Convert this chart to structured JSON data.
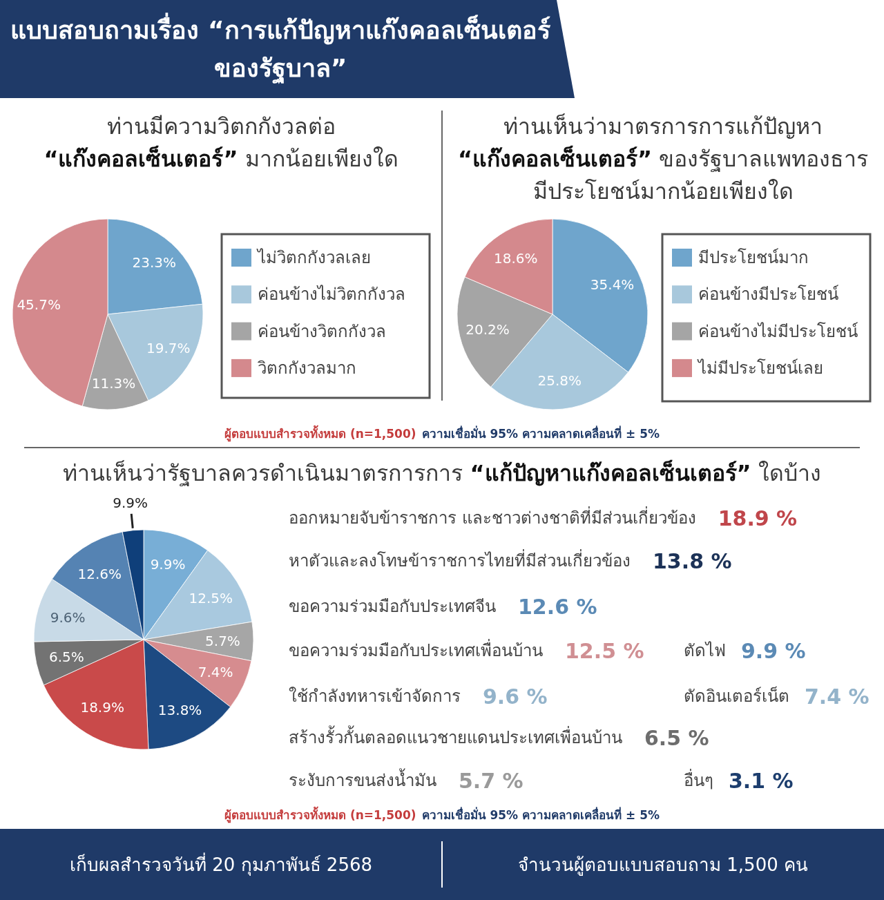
{
  "chart_data": [
    {
      "type": "other",
      "title": "แบบสอบถามเรื่อง “การแก้ปัญหาแก๊งคอลเซ็นเตอร์ ของรัฐบาล”"
    },
    {
      "type": "pie",
      "title": "ท่านมีความวิตกกังวลต่อ “แก๊งคอลเซ็นเตอร์” มากน้อยเพียงใด",
      "categories": [
        "ไม่วิตกกังวลเลย",
        "ค่อนข้างไม่วิตกกังวล",
        "ค่อนข้างวิตกกังวล",
        "วิตกกังวลมาก"
      ],
      "values": [
        23.3,
        19.7,
        11.3,
        45.7
      ],
      "colors": [
        "#6fa5cc",
        "#a8c8dc",
        "#a5a5a5",
        "#d4898d"
      ],
      "value_labels": [
        "23.3%",
        "19.7%",
        "11.3%",
        "45.7%"
      ],
      "legend": "right"
    },
    {
      "type": "pie",
      "title": "ท่านเห็นว่ามาตรการการแก้ปัญหา “แก๊งคอลเซ็นเตอร์” ของรัฐบาลแพทองธาร มีประโยชน์มากน้อยเพียงใด",
      "categories": [
        "มีประโยชน์มาก",
        "ค่อนข้างมีประโยชน์",
        "ค่อนข้างไม่มีประโยชน์",
        "ไม่มีประโยชน์เลย"
      ],
      "values": [
        35.4,
        25.8,
        20.2,
        18.6
      ],
      "colors": [
        "#6fa5cc",
        "#a8c8dc",
        "#a5a5a5",
        "#d4898d"
      ],
      "value_labels": [
        "35.4%",
        "25.8%",
        "20.2%",
        "18.6%"
      ],
      "legend": "right",
      "annotations": [
        "ผู้ตอบแบบสำรวจทั้งหมด (n=1,500)",
        "ความเชื่อมั่น 95% ความคลาดเคลื่อนที่ ± 5%"
      ]
    },
    {
      "type": "pie",
      "title": "ท่านเห็นว่ารัฐบาลควรดำเนินมาตรการการ “แก้ปัญหาแก๊งคอลเซ็นเตอร์” ใดบ้าง",
      "categories": [
        null,
        null,
        null,
        null,
        null,
        null,
        null,
        null,
        null,
        null
      ],
      "values": [
        9.9,
        12.5,
        5.7,
        7.4,
        13.8,
        18.9,
        6.5,
        9.6,
        12.6,
        3.1
      ],
      "colors": [
        "#78aed6",
        "#a9c9df",
        "#a6a6a6",
        "#d68c8f",
        "#1d4a82",
        "#c94a4a",
        "#737373",
        "#c8dae7",
        "#5583b3",
        "#0f3f7a"
      ],
      "value_labels": [
        "9.9%",
        "12.5%",
        "5.7%",
        "7.4%",
        "13.8%",
        "18.9%",
        "6.5%",
        "9.6%",
        "12.6%",
        null
      ],
      "annotations": [
        "9.9%",
        "ผู้ตอบแบบสำรวจทั้งหมด (n=1,500)",
        "ความเชื่อมั่น 95% ความคลาดเคลื่อนที่ ± 5%"
      ]
    },
    {
      "type": "other",
      "annotations": [
        "ออกหมายจับข้าราชการ และชาวต่างชาติที่มีส่วนเกี่ยวข้อง",
        "18.9 %",
        "หาตัวและลงโทษข้าราชการไทยที่มีส่วนเกี่ยวข้อง",
        "13.8 %",
        "ขอความร่วมมือกับประเทศจีน",
        "12.6 %",
        "ขอความร่วมมือกับประเทศเพื่อนบ้าน",
        "12.5 %",
        "ตัดไฟ",
        "9.9 %",
        "ใช้กำลังทหารเข้าจัดการ",
        "9.6 %",
        "ตัดอินเตอร์เน็ต",
        "7.4 %",
        "สร้างรั้วกั้นตลอดแนวชายแดนประเทศเพื่อนบ้าน",
        "6.5 %",
        "ระงับการขนส่งน้ำมัน",
        "5.7 %",
        "อื่นๆ",
        "3.1 %"
      ]
    },
    {
      "type": "other",
      "annotations": [
        "เก็บผลสำรวจวันที่ 20 กุมภาพันธ์ 2568",
        "จำนวนผู้ตอบแบบสอบถาม 1,500 คน"
      ]
    }
  ]
}
